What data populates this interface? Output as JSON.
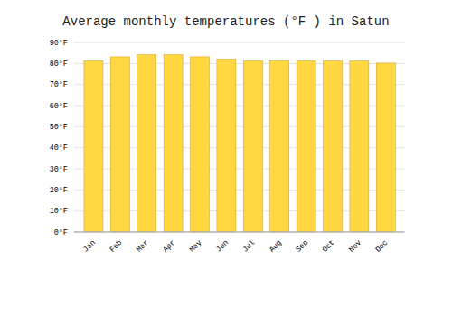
{
  "chart_data": {
    "type": "bar",
    "title": "Average monthly temperatures (°F ) in Satun",
    "categories": [
      "Jan",
      "Feb",
      "Mar",
      "Apr",
      "May",
      "Jun",
      "Jul",
      "Aug",
      "Sep",
      "Oct",
      "Nov",
      "Dec"
    ],
    "values": [
      81,
      83,
      84,
      84,
      83,
      82,
      81,
      81,
      81,
      81,
      81,
      80
    ],
    "color": "#FFD740",
    "ylim": [
      0,
      90
    ],
    "yticks": [
      {
        "value": 0,
        "label": "0°F"
      },
      {
        "value": 10,
        "label": "10°F"
      },
      {
        "value": 20,
        "label": "20°F"
      },
      {
        "value": 30,
        "label": "30°F"
      },
      {
        "value": 40,
        "label": "40°F"
      },
      {
        "value": 50,
        "label": "50°F"
      },
      {
        "value": 60,
        "label": "60°F"
      },
      {
        "value": 70,
        "label": "70°F"
      },
      {
        "value": 80,
        "label": "80°F"
      },
      {
        "value": 90,
        "label": "90°F"
      }
    ],
    "grid": true
  }
}
